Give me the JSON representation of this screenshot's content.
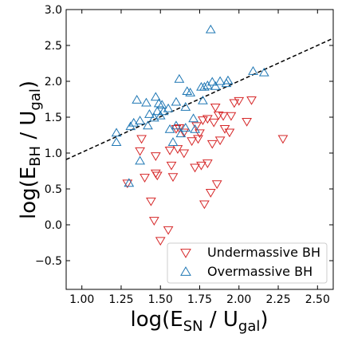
{
  "chart_data": {
    "type": "scatter",
    "title": "",
    "xlabel": {
      "base": "log(E",
      "sub": "SN",
      "mid": " / U",
      "sub2": "gal",
      "end": ")"
    },
    "ylabel": {
      "base": "log(E",
      "sub": "BH",
      "mid": " / U",
      "sub2": "gal",
      "end": ")"
    },
    "xlim": [
      0.9,
      2.6
    ],
    "ylim": [
      -0.9,
      3.0
    ],
    "xticks": [
      1.0,
      1.25,
      1.5,
      1.75,
      2.0,
      2.25,
      2.5
    ],
    "xtick_labels": [
      "1.00",
      "1.25",
      "1.50",
      "1.75",
      "2.00",
      "2.25",
      "2.50"
    ],
    "yticks": [
      -0.5,
      0.0,
      0.5,
      1.0,
      1.5,
      2.0,
      2.5,
      3.0
    ],
    "ytick_labels": [
      "−0.5",
      "0.0",
      "0.5",
      "1.0",
      "1.5",
      "2.0",
      "2.5",
      "3.0"
    ],
    "grid": false,
    "legend_placement": "lower-right",
    "reference_line": {
      "style": "dashed",
      "color": "#000000",
      "x": [
        0.9,
        2.6
      ],
      "y": [
        0.91,
        2.6
      ]
    },
    "series": [
      {
        "name": "Undermassive BH",
        "marker": "triangle-down",
        "color": "#d62728",
        "points": [
          [
            1.29,
            0.58
          ],
          [
            1.37,
            1.03
          ],
          [
            1.38,
            1.2
          ],
          [
            1.4,
            0.66
          ],
          [
            1.44,
            0.33
          ],
          [
            1.46,
            0.06
          ],
          [
            1.47,
            0.96
          ],
          [
            1.47,
            0.72
          ],
          [
            1.48,
            0.69
          ],
          [
            1.5,
            -0.22
          ],
          [
            1.55,
            -0.07
          ],
          [
            1.56,
            1.04
          ],
          [
            1.57,
            0.83
          ],
          [
            1.58,
            0.67
          ],
          [
            1.6,
            1.34
          ],
          [
            1.61,
            1.06
          ],
          [
            1.62,
            1.35
          ],
          [
            1.65,
            1.0
          ],
          [
            1.65,
            1.29
          ],
          [
            1.7,
            1.17
          ],
          [
            1.72,
            0.8
          ],
          [
            1.73,
            1.38
          ],
          [
            1.74,
            1.2
          ],
          [
            1.75,
            1.28
          ],
          [
            1.76,
            0.83
          ],
          [
            1.77,
            1.46
          ],
          [
            1.78,
            0.29
          ],
          [
            1.8,
            0.86
          ],
          [
            1.82,
            0.45
          ],
          [
            1.83,
            1.13
          ],
          [
            1.84,
            1.43
          ],
          [
            1.85,
            1.64
          ],
          [
            1.86,
            0.57
          ],
          [
            1.87,
            1.53
          ],
          [
            1.88,
            1.18
          ],
          [
            1.9,
            1.52
          ],
          [
            1.91,
            1.34
          ],
          [
            1.94,
            1.29
          ],
          [
            1.95,
            1.52
          ],
          [
            1.97,
            1.7
          ],
          [
            2.0,
            1.73
          ],
          [
            2.05,
            1.44
          ],
          [
            2.08,
            1.74
          ],
          [
            2.28,
            1.2
          ],
          [
            1.8,
            1.48
          ]
        ]
      },
      {
        "name": "Overmassive BH",
        "marker": "triangle-up",
        "color": "#1f77b4",
        "points": [
          [
            1.22,
            1.15
          ],
          [
            1.22,
            1.28
          ],
          [
            1.3,
            0.58
          ],
          [
            1.31,
            1.37
          ],
          [
            1.33,
            1.42
          ],
          [
            1.35,
            1.74
          ],
          [
            1.37,
            1.45
          ],
          [
            1.37,
            0.89
          ],
          [
            1.41,
            1.7
          ],
          [
            1.42,
            1.38
          ],
          [
            1.43,
            1.54
          ],
          [
            1.46,
            1.49
          ],
          [
            1.47,
            1.78
          ],
          [
            1.48,
            1.58
          ],
          [
            1.49,
            1.69
          ],
          [
            1.5,
            1.52
          ],
          [
            1.51,
            1.67
          ],
          [
            1.52,
            1.58
          ],
          [
            1.55,
            1.62
          ],
          [
            1.56,
            1.33
          ],
          [
            1.58,
            1.15
          ],
          [
            1.6,
            1.71
          ],
          [
            1.6,
            1.38
          ],
          [
            1.62,
            2.03
          ],
          [
            1.63,
            1.27
          ],
          [
            1.66,
            1.64
          ],
          [
            1.67,
            1.86
          ],
          [
            1.69,
            1.84
          ],
          [
            1.71,
            1.48
          ],
          [
            1.72,
            1.33
          ],
          [
            1.76,
            1.92
          ],
          [
            1.77,
            1.73
          ],
          [
            1.78,
            1.92
          ],
          [
            1.8,
            1.94
          ],
          [
            1.82,
            2.72
          ],
          [
            1.83,
            1.99
          ],
          [
            1.85,
            1.93
          ],
          [
            1.88,
            2.0
          ],
          [
            1.92,
            1.97
          ],
          [
            1.93,
            2.01
          ],
          [
            2.09,
            2.14
          ],
          [
            2.16,
            2.12
          ],
          [
            1.66,
            1.35
          ]
        ]
      }
    ]
  }
}
